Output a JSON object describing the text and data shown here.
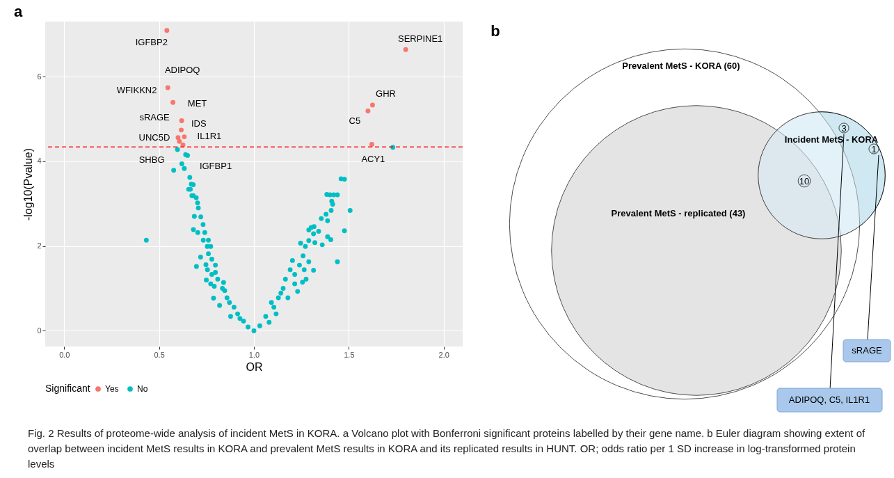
{
  "chart_data": [
    {
      "type": "scatter",
      "title": "a",
      "xlabel": "OR",
      "ylabel": "-log10(Pvalue)",
      "legend_title": "Significant",
      "xlim": [
        -0.1,
        2.1
      ],
      "ylim": [
        -0.37,
        7.3
      ],
      "xticks": [
        {
          "value": 0,
          "label": "0.0"
        },
        {
          "value": 0.5,
          "label": "0.5"
        },
        {
          "value": 1,
          "label": "1.0"
        },
        {
          "value": 1.5,
          "label": "1.5"
        },
        {
          "value": 2,
          "label": "2.0"
        }
      ],
      "yticks": [
        0,
        2,
        4,
        6
      ],
      "grid": true,
      "legend": "bottom",
      "marker": "circle",
      "series": [
        {
          "name": "Yes",
          "color": "#f8766d",
          "x": [
            0.541,
            0.546,
            0.573,
            0.619,
            0.617,
            0.633,
            0.6,
            0.607,
            0.626,
            1.8,
            1.625,
            1.601,
            1.621
          ],
          "values": [
            7.09,
            5.74,
            5.39,
            4.96,
            4.74,
            4.58,
            4.56,
            4.47,
            4.39,
            6.64,
            5.33,
            5.19,
            4.4
          ]
        },
        {
          "name": "No",
          "color": "#00bfc4",
          "x": [
            0.597,
            0.64,
            0.65,
            0.62,
            0.633,
            0.577,
            0.662,
            0.67,
            0.656,
            0.673,
            1.459,
            1.384,
            1.421,
            1.732,
            0.433,
            0.68,
            0.665,
            0.68,
            0.696,
            0.703,
            0.707,
            0.686,
            0.72,
            0.732,
            0.681,
            0.704,
            0.741,
            0.733,
            0.76,
            0.754,
            0.772,
            0.719,
            0.697,
            0.76,
            0.778,
            0.747,
            0.755,
            0.749,
            0.778,
            0.797,
            0.772,
            0.809,
            0.84,
            0.787,
            0.819,
            0.846,
            0.858,
            0.877,
            0.895,
            0.914,
            0.945,
            0.969,
            1.0,
            0.797,
            0.791,
            0.834,
            0.871,
            0.926,
            1.031,
            1.062,
            1.08,
            1.105,
            1.117,
            1.129,
            1.154,
            1.166,
            1.179,
            1.191,
            1.203,
            1.23,
            1.215,
            1.24,
            1.256,
            1.275,
            1.259,
            1.289,
            1.314,
            1.271,
            1.246,
            1.289,
            1.321,
            1.314,
            1.289,
            1.341,
            1.317,
            1.302,
            1.36,
            1.355,
            1.38,
            1.388,
            1.388,
            1.405,
            1.407,
            1.415,
            1.41,
            1.401,
            1.44,
            1.477,
            1.507,
            1.477,
            1.44,
            1.142,
            1.092,
            1.215,
            1.265
          ],
          "values": [
            4.28,
            4.16,
            4.14,
            3.94,
            3.83,
            3.79,
            3.62,
            3.46,
            3.34,
            3.19,
            3.59,
            3.22,
            3.21,
            4.33,
            2.14,
            3.45,
            3.34,
            3.19,
            3.14,
            3.02,
            2.9,
            2.7,
            2.69,
            2.51,
            2.39,
            2.32,
            2.32,
            2.14,
            2.14,
            1.99,
            1.99,
            1.74,
            1.52,
            1.82,
            1.69,
            1.56,
            1.44,
            1.2,
            1.33,
            1.38,
            1.11,
            1.22,
            1.14,
            0.77,
            0.6,
            0.95,
            0.78,
            0.34,
            0.56,
            0.4,
            0.23,
            0.09,
            0.0,
            1.55,
            1.05,
            1.0,
            0.67,
            0.29,
            0.12,
            0.34,
            0.2,
            0.56,
            0.4,
            0.78,
            1.0,
            1.22,
            0.78,
            1.44,
            1.66,
            0.93,
            1.11,
            1.55,
            1.15,
            1.22,
            1.77,
            1.63,
            1.43,
            1.99,
            2.07,
            2.13,
            2.08,
            2.29,
            2.38,
            2.35,
            2.46,
            2.44,
            2.03,
            2.65,
            2.75,
            2.6,
            2.22,
            2.15,
            2.84,
            2.99,
            3.06,
            3.21,
            3.21,
            3.58,
            2.84,
            2.36,
            1.63,
            0.89,
            0.67,
            1.33,
            1.44
          ]
        }
      ],
      "ref_lines": [
        {
          "axis": "y",
          "value": 4.34,
          "color": "#ff0000",
          "line_style": "dashed"
        }
      ],
      "annotations": [
        {
          "text": "IGFBP2",
          "x": 0.541,
          "y": 7.09
        },
        {
          "text": "ADIPOQ",
          "x": 0.546,
          "y": 5.74
        },
        {
          "text": "WFIKKN2",
          "x": 0.573,
          "y": 5.39
        },
        {
          "text": "MET",
          "x": 0.617,
          "y": 4.74
        },
        {
          "text": "sRAGE",
          "x": 0.619,
          "y": 4.96
        },
        {
          "text": "IDS",
          "x": 0.607,
          "y": 4.47
        },
        {
          "text": "IL1R1",
          "x": 0.633,
          "y": 4.58
        },
        {
          "text": "UNC5D",
          "x": 0.6,
          "y": 4.56
        },
        {
          "text": "SHBG",
          "x": 0.597,
          "y": 4.28
        },
        {
          "text": "IGFBP1",
          "x": 0.626,
          "y": 4.39
        },
        {
          "text": "SERPINE1",
          "x": 1.8,
          "y": 6.64
        },
        {
          "text": "GHR",
          "x": 1.625,
          "y": 5.33
        },
        {
          "text": "C5",
          "x": 1.601,
          "y": 5.19
        },
        {
          "text": "ACY1",
          "x": 1.621,
          "y": 4.4
        }
      ]
    },
    {
      "type": "other",
      "title": "b",
      "annotations": [
        "Prevalent MetS - KORA (60)",
        "Prevalent MetS - replicated (43)",
        "Incident MetS - KORA",
        "3",
        "10",
        "1",
        "sRAGE",
        "ADIPOQ, C5, IL1R1",
        "Fig. 2  Results of proteome-wide analysis of incident MetS in KORA. a Volcano plot with Bonferroni significant proteins labelled by their gene name. b Euler diagram showing extent of overlap between incident MetS results in KORA and prevalent MetS results in KORA and its replicated results in HUNT. OR; odds ratio per 1 SD increase in log-transformed protein levels"
      ]
    }
  ]
}
